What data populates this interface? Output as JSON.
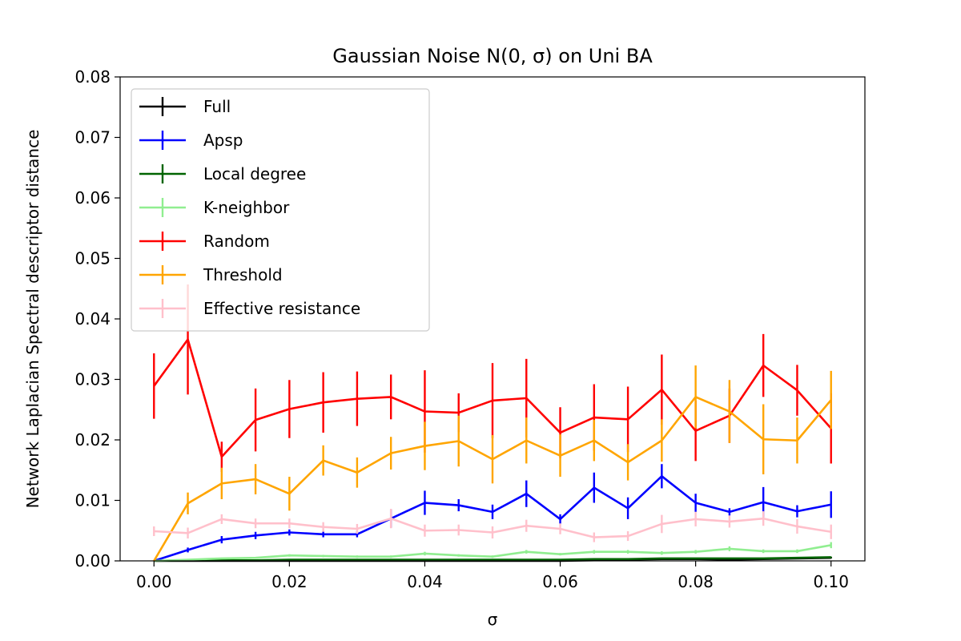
{
  "chart_data": {
    "type": "line",
    "title": "Gaussian Noise N(0, σ) on Uni BA",
    "xlabel": "σ",
    "ylabel": "Network Laplacian Spectral descriptor distance",
    "xlim": [
      -0.005,
      0.105
    ],
    "ylim": [
      0,
      0.08
    ],
    "xticks": [
      0.0,
      0.02,
      0.04,
      0.06,
      0.08,
      0.1
    ],
    "xtick_labels": [
      "0.00",
      "0.02",
      "0.04",
      "0.06",
      "0.08",
      "0.10"
    ],
    "yticks": [
      0.0,
      0.01,
      0.02,
      0.03,
      0.04,
      0.05,
      0.06,
      0.07,
      0.08
    ],
    "ytick_labels": [
      "0.00",
      "0.01",
      "0.02",
      "0.03",
      "0.04",
      "0.05",
      "0.06",
      "0.07",
      "0.08"
    ],
    "grid": false,
    "legend_position": "top-left",
    "x": [
      0.0,
      0.005,
      0.01,
      0.015,
      0.02,
      0.025,
      0.03,
      0.035,
      0.04,
      0.045,
      0.05,
      0.055,
      0.06,
      0.065,
      0.07,
      0.075,
      0.08,
      0.085,
      0.09,
      0.095,
      0.1
    ],
    "series": [
      {
        "name": "Full",
        "color": "#000000",
        "values": [
          0,
          0,
          0,
          0,
          0,
          0,
          0,
          0,
          0,
          0,
          0,
          0,
          0,
          0.0001,
          0.0002,
          0.0003,
          0.0003,
          0.0002,
          0.0003,
          0.0004,
          0.0005
        ],
        "errors": [
          0,
          0,
          0,
          0,
          0,
          0,
          0,
          0,
          0,
          0,
          0,
          0,
          0,
          0.0001,
          0.0001,
          0.0001,
          0.0001,
          0.0001,
          0.0001,
          0.0001,
          0.0001
        ]
      },
      {
        "name": "Apsp",
        "color": "#0000ff",
        "values": [
          0,
          0.0018,
          0.0035,
          0.0042,
          0.0047,
          0.0044,
          0.0044,
          0.007,
          0.0096,
          0.0092,
          0.0081,
          0.0111,
          0.0069,
          0.0121,
          0.0087,
          0.014,
          0.0096,
          0.0081,
          0.0097,
          0.0082,
          0.0093
        ],
        "errors": [
          0,
          0.0004,
          0.0006,
          0.0006,
          0.0005,
          0.0005,
          0.0005,
          0.0015,
          0.002,
          0.001,
          0.0012,
          0.0022,
          0.0008,
          0.0025,
          0.0018,
          0.002,
          0.0015,
          0.0006,
          0.0025,
          0.001,
          0.0022
        ]
      },
      {
        "name": "Local degree",
        "color": "#006400",
        "values": [
          0,
          0.0001,
          0.0001,
          0.0001,
          0.0002,
          0.0002,
          0.0002,
          0.0002,
          0.0002,
          0.0002,
          0.0002,
          0.0002,
          0.0002,
          0.0003,
          0.0003,
          0.0004,
          0.0004,
          0.0004,
          0.0004,
          0.0005,
          0.0006
        ],
        "errors": [
          0,
          0.0001,
          0.0001,
          0.0001,
          0.0001,
          0.0001,
          0.0001,
          0.0001,
          0.0001,
          0.0001,
          0.0001,
          0.0001,
          0.0001,
          0.0001,
          0.0001,
          0.0001,
          0.0001,
          0.0001,
          0.0001,
          0.0001,
          0.0001
        ]
      },
      {
        "name": "K-neighbor",
        "color": "#90ee90",
        "values": [
          0,
          0.0002,
          0.0004,
          0.0005,
          0.0009,
          0.0008,
          0.0007,
          0.0007,
          0.0012,
          0.0009,
          0.0007,
          0.0015,
          0.0011,
          0.0015,
          0.0015,
          0.0013,
          0.0015,
          0.002,
          0.0016,
          0.0016,
          0.0026
        ],
        "errors": [
          0,
          0.0001,
          0.0001,
          0.0001,
          0.0002,
          0.0002,
          0.0002,
          0.0002,
          0.0003,
          0.0002,
          0.0002,
          0.0003,
          0.0002,
          0.0003,
          0.0003,
          0.0003,
          0.0003,
          0.0004,
          0.0003,
          0.0003,
          0.0005
        ]
      },
      {
        "name": "Random",
        "color": "#ff0000",
        "values": [
          0.0289,
          0.0366,
          0.0172,
          0.0233,
          0.0251,
          0.0262,
          0.0268,
          0.0271,
          0.0247,
          0.0245,
          0.0265,
          0.0269,
          0.0212,
          0.0237,
          0.0234,
          0.0283,
          0.0215,
          0.024,
          0.0323,
          0.0282,
          0.0219
        ],
        "errors": [
          0.0054,
          0.0091,
          0.0025,
          0.0052,
          0.0048,
          0.005,
          0.0045,
          0.0037,
          0.0068,
          0.0032,
          0.0062,
          0.0065,
          0.0042,
          0.0055,
          0.0054,
          0.0058,
          0.005,
          0.0045,
          0.0052,
          0.0042,
          0.0058
        ]
      },
      {
        "name": "Threshold",
        "color": "#ffa500",
        "values": [
          0,
          0.0095,
          0.0128,
          0.0135,
          0.0111,
          0.0166,
          0.0146,
          0.0178,
          0.019,
          0.0198,
          0.0168,
          0.0199,
          0.0174,
          0.0199,
          0.0163,
          0.0199,
          0.0271,
          0.0247,
          0.0201,
          0.0199,
          0.0266
        ],
        "errors": [
          0,
          0.0018,
          0.0026,
          0.0025,
          0.0028,
          0.0025,
          0.0025,
          0.0027,
          0.004,
          0.0042,
          0.004,
          0.0038,
          0.0035,
          0.0034,
          0.003,
          0.0035,
          0.0052,
          0.0052,
          0.0058,
          0.0038,
          0.0048
        ]
      },
      {
        "name": "Effective resistance",
        "color": "#ffc0cb",
        "values": [
          0.0049,
          0.0046,
          0.0069,
          0.0062,
          0.0062,
          0.0056,
          0.0053,
          0.007,
          0.005,
          0.0051,
          0.0047,
          0.0058,
          0.0053,
          0.0039,
          0.0041,
          0.0061,
          0.0069,
          0.0065,
          0.007,
          0.0057,
          0.0048
        ],
        "errors": [
          0.0008,
          0.0009,
          0.0008,
          0.0008,
          0.0008,
          0.0008,
          0.0008,
          0.0016,
          0.001,
          0.0009,
          0.001,
          0.001,
          0.0009,
          0.0008,
          0.0008,
          0.0015,
          0.0012,
          0.001,
          0.0012,
          0.0012,
          0.0012
        ]
      }
    ]
  }
}
